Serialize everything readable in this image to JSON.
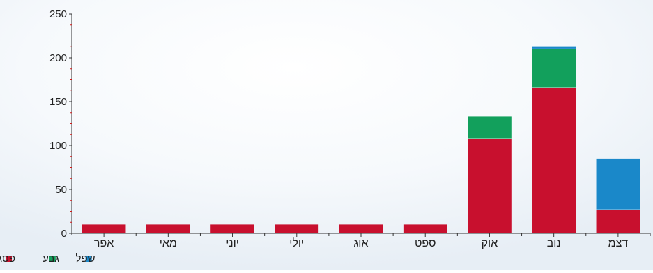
{
  "chart_data": {
    "type": "bar",
    "stacked": true,
    "categories": [
      "אפר",
      "מאי",
      "יוני",
      "יולי",
      "אוג",
      "ספט",
      "אוק",
      "נוב",
      "דצמ"
    ],
    "series": [
      {
        "name": "פסגה",
        "color": "#c8102e",
        "values": [
          10,
          10,
          10,
          10,
          10,
          10,
          108,
          166,
          27
        ]
      },
      {
        "name": "גבע",
        "color": "#12a05c",
        "values": [
          0,
          0,
          0,
          0,
          0,
          0,
          25,
          44,
          0
        ]
      },
      {
        "name": "שפל",
        "color": "#1a88c9",
        "values": [
          0,
          0,
          0,
          0,
          0,
          0,
          0,
          3,
          58
        ]
      }
    ],
    "ylim": [
      0,
      250
    ],
    "yticks": [
      0,
      50,
      100,
      150,
      200,
      250
    ],
    "legend_position": "bottom-left"
  }
}
